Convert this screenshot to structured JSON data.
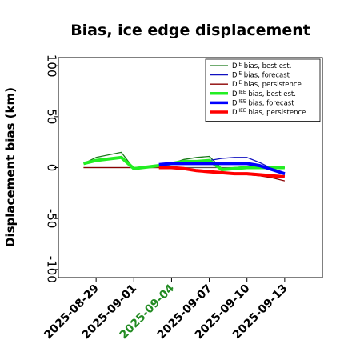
{
  "chart_data": {
    "type": "line",
    "title": "Bias, ice edge displacement",
    "xlabel": "",
    "ylabel": "Displacement bias (km)",
    "ylim": [
      -108,
      108
    ],
    "xlim": [
      "2025-08-26",
      "2025-09-16"
    ],
    "yticks": [
      100,
      50,
      0,
      -50,
      -100
    ],
    "xticks": [
      {
        "date": "2025-08-29",
        "label": "2025-08-29",
        "color": "#000000"
      },
      {
        "date": "2025-09-01",
        "label": "2025-09-01",
        "color": "#000000"
      },
      {
        "date": "2025-09-04",
        "label": "2025-09-04",
        "color": "#228b22"
      },
      {
        "date": "2025-09-07",
        "label": "2025-09-07",
        "color": "#000000"
      },
      {
        "date": "2025-09-10",
        "label": "2025-09-10",
        "color": "#000000"
      },
      {
        "date": "2025-09-13",
        "label": "2025-09-13",
        "color": "#000000"
      }
    ],
    "zero_line": true,
    "grid": false,
    "legend_position": "top-right",
    "series": [
      {
        "name": "D^IE bias, best est.",
        "color": "#1a7a1a",
        "width": 1.3,
        "x": [
          "2025-08-28",
          "2025-08-29",
          "2025-08-31",
          "2025-09-01",
          "2025-09-03",
          "2025-09-04",
          "2025-09-05",
          "2025-09-06",
          "2025-09-07",
          "2025-09-08",
          "2025-09-09",
          "2025-09-10",
          "2025-09-11",
          "2025-09-12",
          "2025-09-13"
        ],
        "y": [
          4,
          10,
          15,
          -1,
          2,
          4,
          8,
          10,
          11,
          -1,
          0,
          1,
          2,
          0,
          0
        ]
      },
      {
        "name": "D^IE bias, forecast",
        "color": "#1010c0",
        "width": 1.3,
        "x": [
          "2025-09-03",
          "2025-09-04",
          "2025-09-05",
          "2025-09-06",
          "2025-09-07",
          "2025-09-08",
          "2025-09-09",
          "2025-09-10",
          "2025-09-11",
          "2025-09-12",
          "2025-09-13"
        ],
        "y": [
          3,
          4,
          5,
          6,
          7,
          9,
          10,
          10,
          5,
          -1,
          -7
        ]
      },
      {
        "name": "D^IE bias, persistence",
        "color": "#8b0000",
        "width": 1.3,
        "x": [
          "2025-08-28",
          "2025-09-02",
          "2025-09-03",
          "2025-09-04",
          "2025-09-05",
          "2025-09-06",
          "2025-09-07",
          "2025-09-08",
          "2025-09-09",
          "2025-09-10",
          "2025-09-11",
          "2025-09-12",
          "2025-09-13"
        ],
        "y": [
          0,
          0,
          0,
          0,
          -1,
          -3,
          -4,
          -5,
          -6,
          -7,
          -8,
          -10,
          -13
        ]
      },
      {
        "name": "D^IIEE bias, best est.",
        "color": "#22ee22",
        "width": 4,
        "x": [
          "2025-08-28",
          "2025-08-29",
          "2025-08-31",
          "2025-09-01",
          "2025-09-03",
          "2025-09-04",
          "2025-09-05",
          "2025-09-06",
          "2025-09-07",
          "2025-09-08",
          "2025-09-09",
          "2025-09-10",
          "2025-09-11",
          "2025-09-12",
          "2025-09-13"
        ],
        "y": [
          4,
          7,
          10,
          -1,
          2,
          4,
          6,
          6,
          7,
          -2,
          -1,
          0,
          0,
          0,
          0
        ]
      },
      {
        "name": "D^IIEE bias, forecast",
        "color": "#0000ff",
        "width": 4,
        "x": [
          "2025-09-03",
          "2025-09-04",
          "2025-09-05",
          "2025-09-06",
          "2025-09-07",
          "2025-09-08",
          "2025-09-09",
          "2025-09-10",
          "2025-09-11",
          "2025-09-12",
          "2025-09-13"
        ],
        "y": [
          3,
          4,
          4,
          4,
          4,
          4,
          4,
          4,
          2,
          -2,
          -6
        ]
      },
      {
        "name": "D^IIEE bias, persistence",
        "color": "#ff0000",
        "width": 4,
        "x": [
          "2025-09-03",
          "2025-09-04",
          "2025-09-05",
          "2025-09-06",
          "2025-09-07",
          "2025-09-08",
          "2025-09-09",
          "2025-09-10",
          "2025-09-11",
          "2025-09-12",
          "2025-09-13"
        ],
        "y": [
          0,
          0,
          -1,
          -3,
          -4,
          -5,
          -6,
          -6,
          -7,
          -8,
          -9
        ]
      }
    ]
  }
}
